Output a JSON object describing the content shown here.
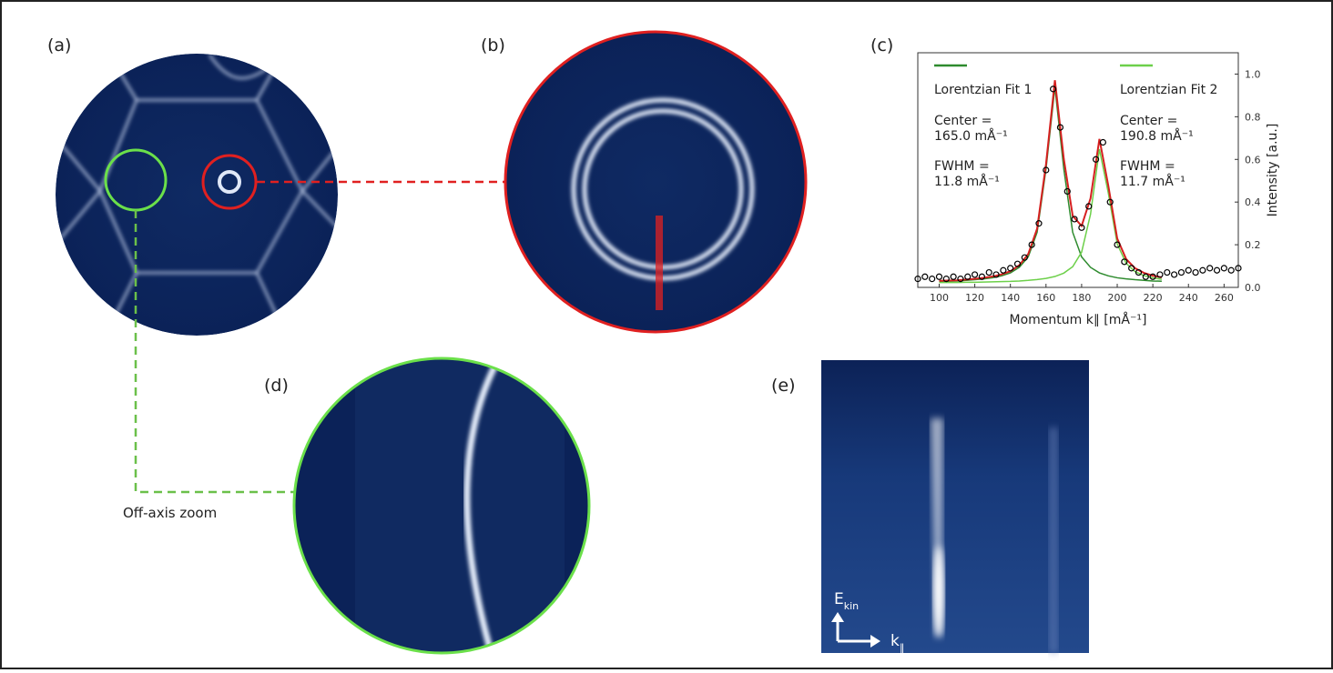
{
  "panel_labels": [
    "(a)",
    "(b)",
    "(c)",
    "(d)",
    "(e)"
  ],
  "zoom_label": "Off-axis zoom",
  "band_axes": {
    "energy": "E",
    "energy_sub": "kin",
    "momentum": "k",
    "momentum_sub": "∥"
  },
  "chart_data": {
    "type": "scatter",
    "xlabel": "Momentum k∥ [mÅ⁻¹]",
    "ylabel": "Intensity [a.u.]",
    "xlim": [
      88,
      268
    ],
    "ylim": [
      0,
      1.1
    ],
    "xticks": [
      100,
      120,
      140,
      160,
      180,
      200,
      220,
      240,
      260
    ],
    "yticks": [
      {
        "value": 0,
        "label": "0.0"
      },
      0.2,
      0.4,
      0.6,
      0.8,
      {
        "value": 1,
        "label": "1.0"
      }
    ],
    "marker_color": "#000000",
    "x": [
      88,
      92,
      96,
      100,
      104,
      108,
      112,
      116,
      120,
      124,
      128,
      132,
      136,
      140,
      144,
      148,
      152,
      156,
      160,
      164,
      168,
      172,
      176,
      180,
      184,
      188,
      192,
      196,
      200,
      204,
      208,
      212,
      216,
      220,
      224,
      228,
      232,
      236,
      240,
      244,
      248,
      252,
      256,
      260,
      264,
      268
    ],
    "values": [
      0.04,
      0.05,
      0.04,
      0.05,
      0.04,
      0.05,
      0.04,
      0.05,
      0.06,
      0.05,
      0.07,
      0.06,
      0.08,
      0.09,
      0.11,
      0.14,
      0.2,
      0.3,
      0.55,
      0.93,
      0.75,
      0.45,
      0.32,
      0.28,
      0.38,
      0.6,
      0.68,
      0.4,
      0.2,
      0.12,
      0.09,
      0.07,
      0.05,
      0.05,
      0.06,
      0.07,
      0.06,
      0.07,
      0.08,
      0.07,
      0.08,
      0.09,
      0.08,
      0.09,
      0.08,
      0.09
    ],
    "fit_x": [
      100,
      105,
      110,
      115,
      120,
      125,
      130,
      135,
      140,
      145,
      150,
      155,
      160,
      165,
      170,
      175,
      180,
      185,
      190,
      195,
      200,
      205,
      210,
      215,
      220,
      225
    ],
    "series": [
      {
        "name": "Lorentzian Fit 1",
        "color": "#2e8b2e",
        "values": [
          0.028,
          0.029,
          0.03,
          0.033,
          0.036,
          0.04,
          0.045,
          0.054,
          0.068,
          0.094,
          0.143,
          0.258,
          0.555,
          0.94,
          0.555,
          0.258,
          0.143,
          0.094,
          0.068,
          0.054,
          0.045,
          0.04,
          0.036,
          0.033,
          0.03,
          0.029
        ]
      },
      {
        "name": "Lorentzian Fit 2",
        "color": "#6dd04a",
        "values": [
          0.023,
          0.023,
          0.023,
          0.024,
          0.024,
          0.025,
          0.026,
          0.027,
          0.028,
          0.03,
          0.033,
          0.037,
          0.042,
          0.051,
          0.067,
          0.097,
          0.165,
          0.343,
          0.648,
          0.442,
          0.204,
          0.113,
          0.074,
          0.055,
          0.045,
          0.038
        ]
      },
      {
        "color": "#d62020",
        "values": [
          0.031,
          0.032,
          0.033,
          0.037,
          0.04,
          0.045,
          0.051,
          0.061,
          0.076,
          0.104,
          0.156,
          0.275,
          0.577,
          0.971,
          0.602,
          0.335,
          0.288,
          0.417,
          0.696,
          0.476,
          0.229,
          0.133,
          0.09,
          0.068,
          0.055,
          0.047
        ]
      }
    ],
    "annotations": [
      {
        "center_label": "Center =",
        "center": "165.0 mÅ⁻¹",
        "fwhm_label": "FWHM =",
        "fwhm": "11.8 mÅ⁻¹"
      },
      {
        "center_label": "Center =",
        "center": "190.8 mÅ⁻¹",
        "fwhm_label": "FWHM =",
        "fwhm": "11.7 mÅ⁻¹"
      }
    ]
  }
}
